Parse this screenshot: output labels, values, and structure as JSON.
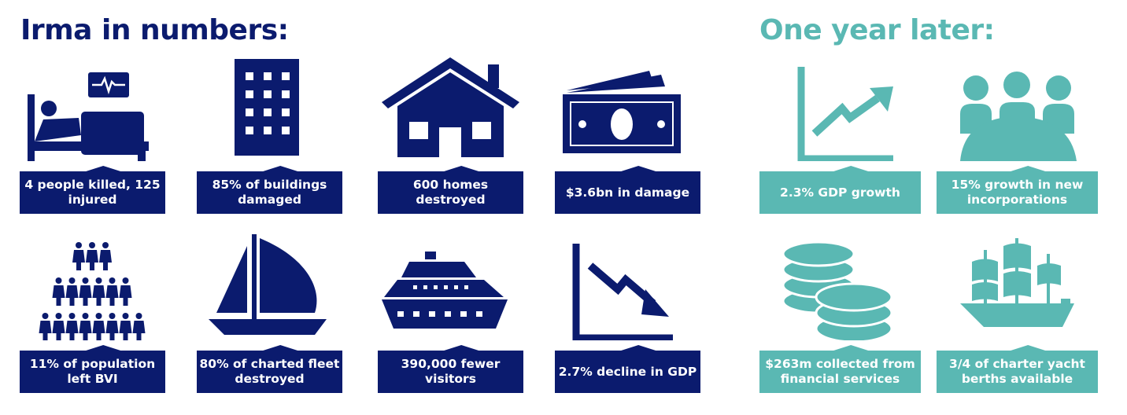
{
  "left_title": "Irma in numbers:",
  "right_title": "One year later:",
  "colors": {
    "navy": "#0b1b6e",
    "teal": "#5ab8b3"
  },
  "left_cards": [
    {
      "icon": "hospital-bed-icon",
      "label": "4 people killed, 125 injured"
    },
    {
      "icon": "building-icon",
      "label": "85% of buildings damaged"
    },
    {
      "icon": "house-icon",
      "label": "600 homes destroyed"
    },
    {
      "icon": "banknotes-icon",
      "label": "$3.6bn in damage"
    },
    {
      "icon": "population-icon",
      "label": "11% of population left BVI"
    },
    {
      "icon": "sailboat-icon",
      "label": "80% of charted fleet destroyed"
    },
    {
      "icon": "cruise-ship-icon",
      "label": "390,000 fewer visitors"
    },
    {
      "icon": "chart-down-icon",
      "label": "2.7% decline in GDP"
    }
  ],
  "right_cards": [
    {
      "icon": "chart-up-icon",
      "label": "2.3% GDP growth"
    },
    {
      "icon": "people-meeting-icon",
      "label": "15% growth in new incorporations"
    },
    {
      "icon": "coins-icon",
      "label": "$263m collected from financial services"
    },
    {
      "icon": "galleon-icon",
      "label": "3/4 of charter yacht berths available"
    }
  ]
}
